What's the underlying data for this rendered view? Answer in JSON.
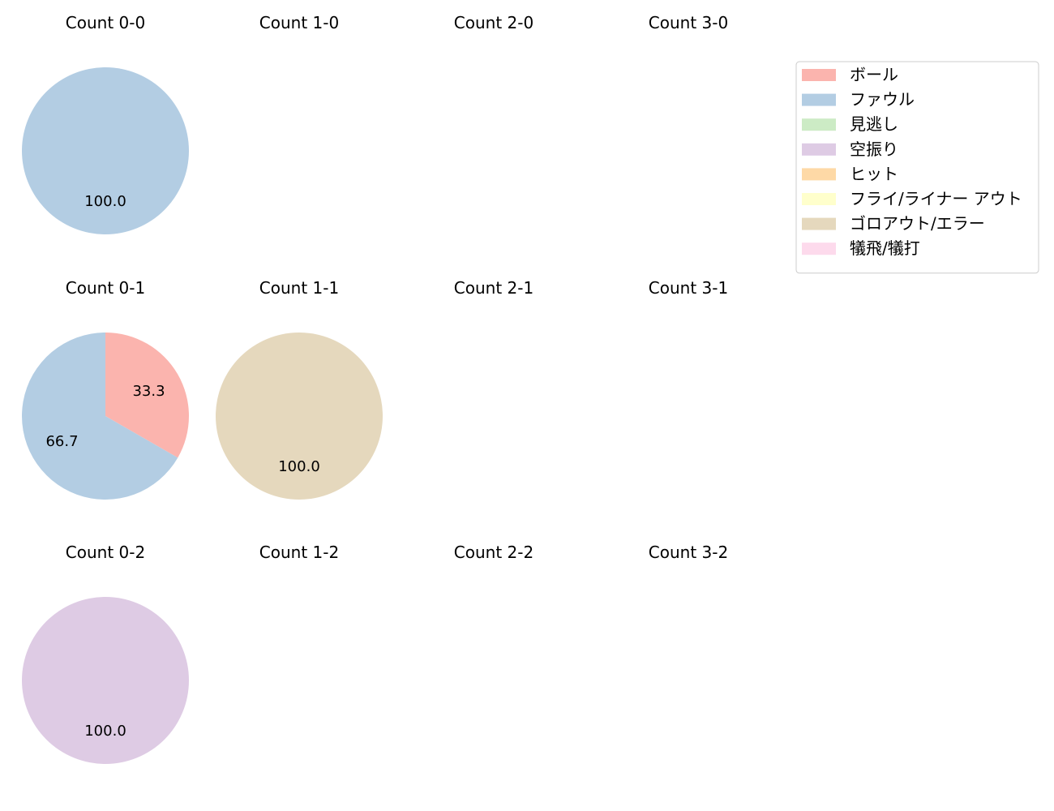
{
  "chart_data": {
    "type": "pie",
    "legend": {
      "placement": "top-right",
      "entries": [
        {
          "label": "ボール",
          "color": "#fbb4ae"
        },
        {
          "label": "ファウル",
          "color": "#b3cde3"
        },
        {
          "label": "見逃し",
          "color": "#ccebc5"
        },
        {
          "label": "空振り",
          "color": "#decbe4"
        },
        {
          "label": "ヒット",
          "color": "#fed9a6"
        },
        {
          "label": "フライ/ライナー アウト",
          "color": "#ffffcc"
        },
        {
          "label": "ゴロアウト/エラー",
          "color": "#e5d8bd"
        },
        {
          "label": "犠飛/犠打",
          "color": "#fddaec"
        }
      ]
    },
    "panels": [
      {
        "title": "Count 0-0",
        "slices": [
          {
            "category": "ファウル",
            "value": 100.0,
            "label": "100.0"
          }
        ]
      },
      {
        "title": "Count 1-0",
        "slices": []
      },
      {
        "title": "Count 2-0",
        "slices": []
      },
      {
        "title": "Count 3-0",
        "slices": []
      },
      {
        "title": "Count 0-1",
        "slices": [
          {
            "category": "ボール",
            "value": 33.3,
            "label": "33.3"
          },
          {
            "category": "ファウル",
            "value": 66.7,
            "label": "66.7"
          }
        ]
      },
      {
        "title": "Count 1-1",
        "slices": [
          {
            "category": "ゴロアウト/エラー",
            "value": 100.0,
            "label": "100.0"
          }
        ]
      },
      {
        "title": "Count 2-1",
        "slices": []
      },
      {
        "title": "Count 3-1",
        "slices": []
      },
      {
        "title": "Count 0-2",
        "slices": [
          {
            "category": "空振り",
            "value": 100.0,
            "label": "100.0"
          }
        ]
      },
      {
        "title": "Count 1-2",
        "slices": []
      },
      {
        "title": "Count 2-2",
        "slices": []
      },
      {
        "title": "Count 3-2",
        "slices": []
      }
    ]
  }
}
